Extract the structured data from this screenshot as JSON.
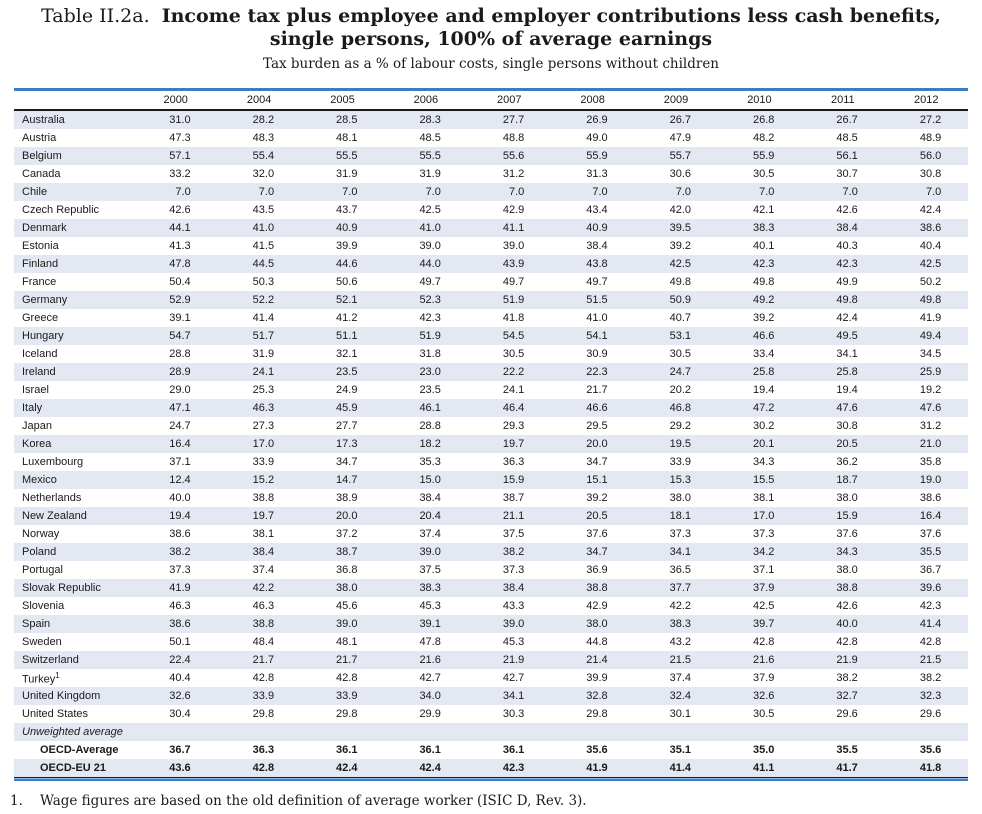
{
  "title": {
    "prefix": "Table II.2a.",
    "line1": "Income tax plus employee and employer contributions less cash benefits,",
    "line2": "single persons, 100% of average earnings",
    "subtitle": "Tax burden as a % of labour costs, single persons without children"
  },
  "colors": {
    "rule_blue": "#3b7cc7",
    "stripe": "#e3e8f2",
    "dark_line": "#1a1a1a",
    "text": "#1a1a1a"
  },
  "chart_data": {
    "type": "table",
    "title": "Income tax plus employee and employer contributions less cash benefits, single persons, 100% of average earnings",
    "subtitle": "Tax burden as a % of labour costs, single persons without children",
    "year_columns": [
      "2000",
      "2004",
      "2005",
      "2006",
      "2007",
      "2008",
      "2009",
      "2010",
      "2011",
      "2012"
    ],
    "rows": [
      {
        "label": "Australia",
        "values": [
          "31.0",
          "28.2",
          "28.5",
          "28.3",
          "27.7",
          "26.9",
          "26.7",
          "26.8",
          "26.7",
          "27.2"
        ]
      },
      {
        "label": "Austria",
        "values": [
          "47.3",
          "48.3",
          "48.1",
          "48.5",
          "48.8",
          "49.0",
          "47.9",
          "48.2",
          "48.5",
          "48.9"
        ]
      },
      {
        "label": "Belgium",
        "values": [
          "57.1",
          "55.4",
          "55.5",
          "55.5",
          "55.6",
          "55.9",
          "55.7",
          "55.9",
          "56.1",
          "56.0"
        ]
      },
      {
        "label": "Canada",
        "values": [
          "33.2",
          "32.0",
          "31.9",
          "31.9",
          "31.2",
          "31.3",
          "30.6",
          "30.5",
          "30.7",
          "30.8"
        ]
      },
      {
        "label": "Chile",
        "values": [
          "7.0",
          "7.0",
          "7.0",
          "7.0",
          "7.0",
          "7.0",
          "7.0",
          "7.0",
          "7.0",
          "7.0"
        ]
      },
      {
        "label": "Czech Republic",
        "values": [
          "42.6",
          "43.5",
          "43.7",
          "42.5",
          "42.9",
          "43.4",
          "42.0",
          "42.1",
          "42.6",
          "42.4"
        ]
      },
      {
        "label": "Denmark",
        "values": [
          "44.1",
          "41.0",
          "40.9",
          "41.0",
          "41.1",
          "40.9",
          "39.5",
          "38.3",
          "38.4",
          "38.6"
        ]
      },
      {
        "label": "Estonia",
        "values": [
          "41.3",
          "41.5",
          "39.9",
          "39.0",
          "39.0",
          "38.4",
          "39.2",
          "40.1",
          "40.3",
          "40.4"
        ]
      },
      {
        "label": "Finland",
        "values": [
          "47.8",
          "44.5",
          "44.6",
          "44.0",
          "43.9",
          "43.8",
          "42.5",
          "42.3",
          "42.3",
          "42.5"
        ]
      },
      {
        "label": "France",
        "values": [
          "50.4",
          "50.3",
          "50.6",
          "49.7",
          "49.7",
          "49.7",
          "49.8",
          "49.8",
          "49.9",
          "50.2"
        ]
      },
      {
        "label": "Germany",
        "values": [
          "52.9",
          "52.2",
          "52.1",
          "52.3",
          "51.9",
          "51.5",
          "50.9",
          "49.2",
          "49.8",
          "49.8"
        ]
      },
      {
        "label": "Greece",
        "values": [
          "39.1",
          "41.4",
          "41.2",
          "42.3",
          "41.8",
          "41.0",
          "40.7",
          "39.2",
          "42.4",
          "41.9"
        ]
      },
      {
        "label": "Hungary",
        "values": [
          "54.7",
          "51.7",
          "51.1",
          "51.9",
          "54.5",
          "54.1",
          "53.1",
          "46.6",
          "49.5",
          "49.4"
        ]
      },
      {
        "label": "Iceland",
        "values": [
          "28.8",
          "31.9",
          "32.1",
          "31.8",
          "30.5",
          "30.9",
          "30.5",
          "33.4",
          "34.1",
          "34.5"
        ]
      },
      {
        "label": "Ireland",
        "values": [
          "28.9",
          "24.1",
          "23.5",
          "23.0",
          "22.2",
          "22.3",
          "24.7",
          "25.8",
          "25.8",
          "25.9"
        ]
      },
      {
        "label": "Israel",
        "values": [
          "29.0",
          "25.3",
          "24.9",
          "23.5",
          "24.1",
          "21.7",
          "20.2",
          "19.4",
          "19.4",
          "19.2"
        ]
      },
      {
        "label": "Italy",
        "values": [
          "47.1",
          "46.3",
          "45.9",
          "46.1",
          "46.4",
          "46.6",
          "46.8",
          "47.2",
          "47.6",
          "47.6"
        ]
      },
      {
        "label": "Japan",
        "values": [
          "24.7",
          "27.3",
          "27.7",
          "28.8",
          "29.3",
          "29.5",
          "29.2",
          "30.2",
          "30.8",
          "31.2"
        ]
      },
      {
        "label": "Korea",
        "values": [
          "16.4",
          "17.0",
          "17.3",
          "18.2",
          "19.7",
          "20.0",
          "19.5",
          "20.1",
          "20.5",
          "21.0"
        ]
      },
      {
        "label": "Luxembourg",
        "values": [
          "37.1",
          "33.9",
          "34.7",
          "35.3",
          "36.3",
          "34.7",
          "33.9",
          "34.3",
          "36.2",
          "35.8"
        ]
      },
      {
        "label": "Mexico",
        "values": [
          "12.4",
          "15.2",
          "14.7",
          "15.0",
          "15.9",
          "15.1",
          "15.3",
          "15.5",
          "18.7",
          "19.0"
        ]
      },
      {
        "label": "Netherlands",
        "values": [
          "40.0",
          "38.8",
          "38.9",
          "38.4",
          "38.7",
          "39.2",
          "38.0",
          "38.1",
          "38.0",
          "38.6"
        ]
      },
      {
        "label": "New Zealand",
        "values": [
          "19.4",
          "19.7",
          "20.0",
          "20.4",
          "21.1",
          "20.5",
          "18.1",
          "17.0",
          "15.9",
          "16.4"
        ]
      },
      {
        "label": "Norway",
        "values": [
          "38.6",
          "38.1",
          "37.2",
          "37.4",
          "37.5",
          "37.6",
          "37.3",
          "37.3",
          "37.6",
          "37.6"
        ]
      },
      {
        "label": "Poland",
        "values": [
          "38.2",
          "38.4",
          "38.7",
          "39.0",
          "38.2",
          "34.7",
          "34.1",
          "34.2",
          "34.3",
          "35.5"
        ]
      },
      {
        "label": "Portugal",
        "values": [
          "37.3",
          "37.4",
          "36.8",
          "37.5",
          "37.3",
          "36.9",
          "36.5",
          "37.1",
          "38.0",
          "36.7"
        ]
      },
      {
        "label": "Slovak Republic",
        "values": [
          "41.9",
          "42.2",
          "38.0",
          "38.3",
          "38.4",
          "38.8",
          "37.7",
          "37.9",
          "38.8",
          "39.6"
        ]
      },
      {
        "label": "Slovenia",
        "values": [
          "46.3",
          "46.3",
          "45.6",
          "45.3",
          "43.3",
          "42.9",
          "42.2",
          "42.5",
          "42.6",
          "42.3"
        ]
      },
      {
        "label": "Spain",
        "values": [
          "38.6",
          "38.8",
          "39.0",
          "39.1",
          "39.0",
          "38.0",
          "38.3",
          "39.7",
          "40.0",
          "41.4"
        ]
      },
      {
        "label": "Sweden",
        "values": [
          "50.1",
          "48.4",
          "48.1",
          "47.8",
          "45.3",
          "44.8",
          "43.2",
          "42.8",
          "42.8",
          "42.8"
        ]
      },
      {
        "label": "Switzerland",
        "values": [
          "22.4",
          "21.7",
          "21.7",
          "21.6",
          "21.9",
          "21.4",
          "21.5",
          "21.6",
          "21.9",
          "21.5"
        ]
      },
      {
        "label": "Turkey",
        "sup": "1",
        "values": [
          "40.4",
          "42.8",
          "42.8",
          "42.7",
          "42.7",
          "39.9",
          "37.4",
          "37.9",
          "38.2",
          "38.2"
        ]
      },
      {
        "label": "United Kingdom",
        "values": [
          "32.6",
          "33.9",
          "33.9",
          "34.0",
          "34.1",
          "32.8",
          "32.4",
          "32.6",
          "32.7",
          "32.3"
        ]
      },
      {
        "label": "United States",
        "values": [
          "30.4",
          "29.8",
          "29.8",
          "29.9",
          "30.3",
          "29.8",
          "30.1",
          "30.5",
          "29.6",
          "29.6"
        ]
      }
    ],
    "separator_label": "Unweighted average",
    "summary_rows": [
      {
        "label": "OECD-Average",
        "values": [
          "36.7",
          "36.3",
          "36.1",
          "36.1",
          "36.1",
          "35.6",
          "35.1",
          "35.0",
          "35.5",
          "35.6"
        ]
      },
      {
        "label": "OECD-EU 21",
        "values": [
          "43.6",
          "42.8",
          "42.4",
          "42.4",
          "42.3",
          "41.9",
          "41.4",
          "41.1",
          "41.7",
          "41.8"
        ]
      }
    ]
  },
  "footnote": {
    "marker": "1.",
    "text": "Wage figures are based on the old definition of average worker (ISIC D, Rev. 3)."
  }
}
